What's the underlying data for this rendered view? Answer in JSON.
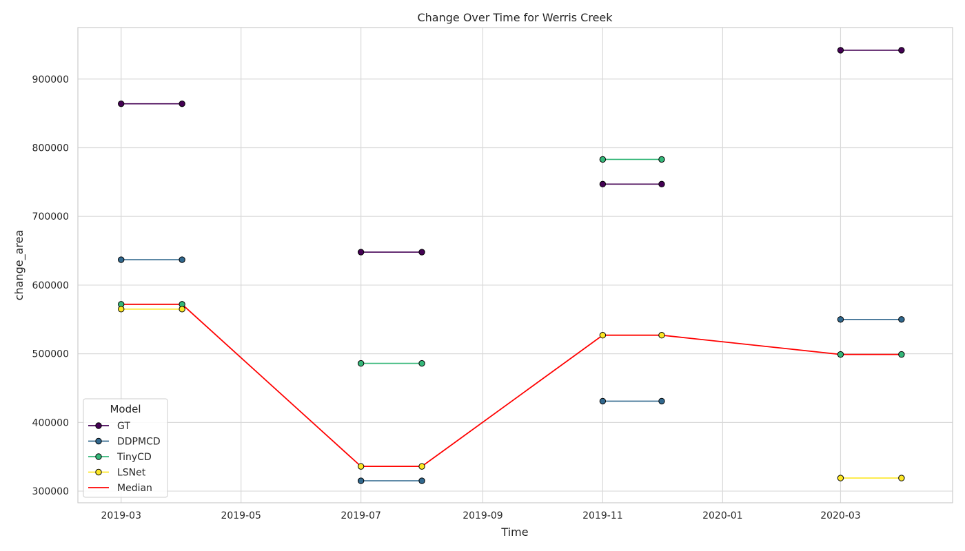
{
  "chart_data": {
    "type": "line",
    "title": "Change Over Time for Werris Creek",
    "xlabel": "Time",
    "ylabel": "change_area",
    "x_ticks": [
      "2019-03",
      "2019-05",
      "2019-07",
      "2019-09",
      "2019-11",
      "2020-01",
      "2020-03"
    ],
    "y_ticks": [
      "300000",
      "400000",
      "500000",
      "600000",
      "700000",
      "800000",
      "900000"
    ],
    "xlim": [
      "2019-02-07",
      "2020-04-27"
    ],
    "ylim": [
      283000,
      975000
    ],
    "grid": true,
    "legend": {
      "title": "Model",
      "placement": "bottom-left"
    },
    "series": [
      {
        "name": "GT",
        "color": "#440154",
        "segments": [
          [
            [
              "2019-03-01",
              864000
            ],
            [
              "2019-04-01",
              864000
            ]
          ],
          [
            [
              "2019-07-01",
              648000
            ],
            [
              "2019-08-01",
              648000
            ]
          ],
          [
            [
              "2019-11-01",
              747000
            ],
            [
              "2019-12-01",
              747000
            ]
          ],
          [
            [
              "2020-03-01",
              942000
            ],
            [
              "2020-04-01",
              942000
            ]
          ]
        ]
      },
      {
        "name": "DDPMCD",
        "color": "#31688e",
        "segments": [
          [
            [
              "2019-03-01",
              637000
            ],
            [
              "2019-04-01",
              637000
            ]
          ],
          [
            [
              "2019-07-01",
              315000
            ],
            [
              "2019-08-01",
              315000
            ]
          ],
          [
            [
              "2019-11-01",
              431000
            ],
            [
              "2019-12-01",
              431000
            ]
          ],
          [
            [
              "2020-03-01",
              550000
            ],
            [
              "2020-04-01",
              550000
            ]
          ]
        ]
      },
      {
        "name": "TinyCD",
        "color": "#35b779",
        "segments": [
          [
            [
              "2019-03-01",
              572000
            ],
            [
              "2019-04-01",
              572000
            ]
          ],
          [
            [
              "2019-07-01",
              486000
            ],
            [
              "2019-08-01",
              486000
            ]
          ],
          [
            [
              "2019-11-01",
              783000
            ],
            [
              "2019-12-01",
              783000
            ]
          ],
          [
            [
              "2020-03-01",
              499000
            ],
            [
              "2020-04-01",
              499000
            ]
          ]
        ]
      },
      {
        "name": "LSNet",
        "color": "#fde725",
        "segments": [
          [
            [
              "2019-03-01",
              565000
            ],
            [
              "2019-04-01",
              565000
            ]
          ],
          [
            [
              "2019-07-01",
              336000
            ],
            [
              "2019-08-01",
              336000
            ]
          ],
          [
            [
              "2019-11-01",
              527000
            ],
            [
              "2019-12-01",
              527000
            ]
          ],
          [
            [
              "2020-03-01",
              319000
            ],
            [
              "2020-04-01",
              319000
            ]
          ]
        ]
      }
    ],
    "median": {
      "name": "Median",
      "color": "#ff0000",
      "points": [
        [
          "2019-03-01",
          572000
        ],
        [
          "2019-04-01",
          572000
        ],
        [
          "2019-07-01",
          336000
        ],
        [
          "2019-08-01",
          336000
        ],
        [
          "2019-11-01",
          527000
        ],
        [
          "2019-12-01",
          527000
        ],
        [
          "2020-03-01",
          499000
        ],
        [
          "2020-04-01",
          499000
        ]
      ]
    }
  }
}
